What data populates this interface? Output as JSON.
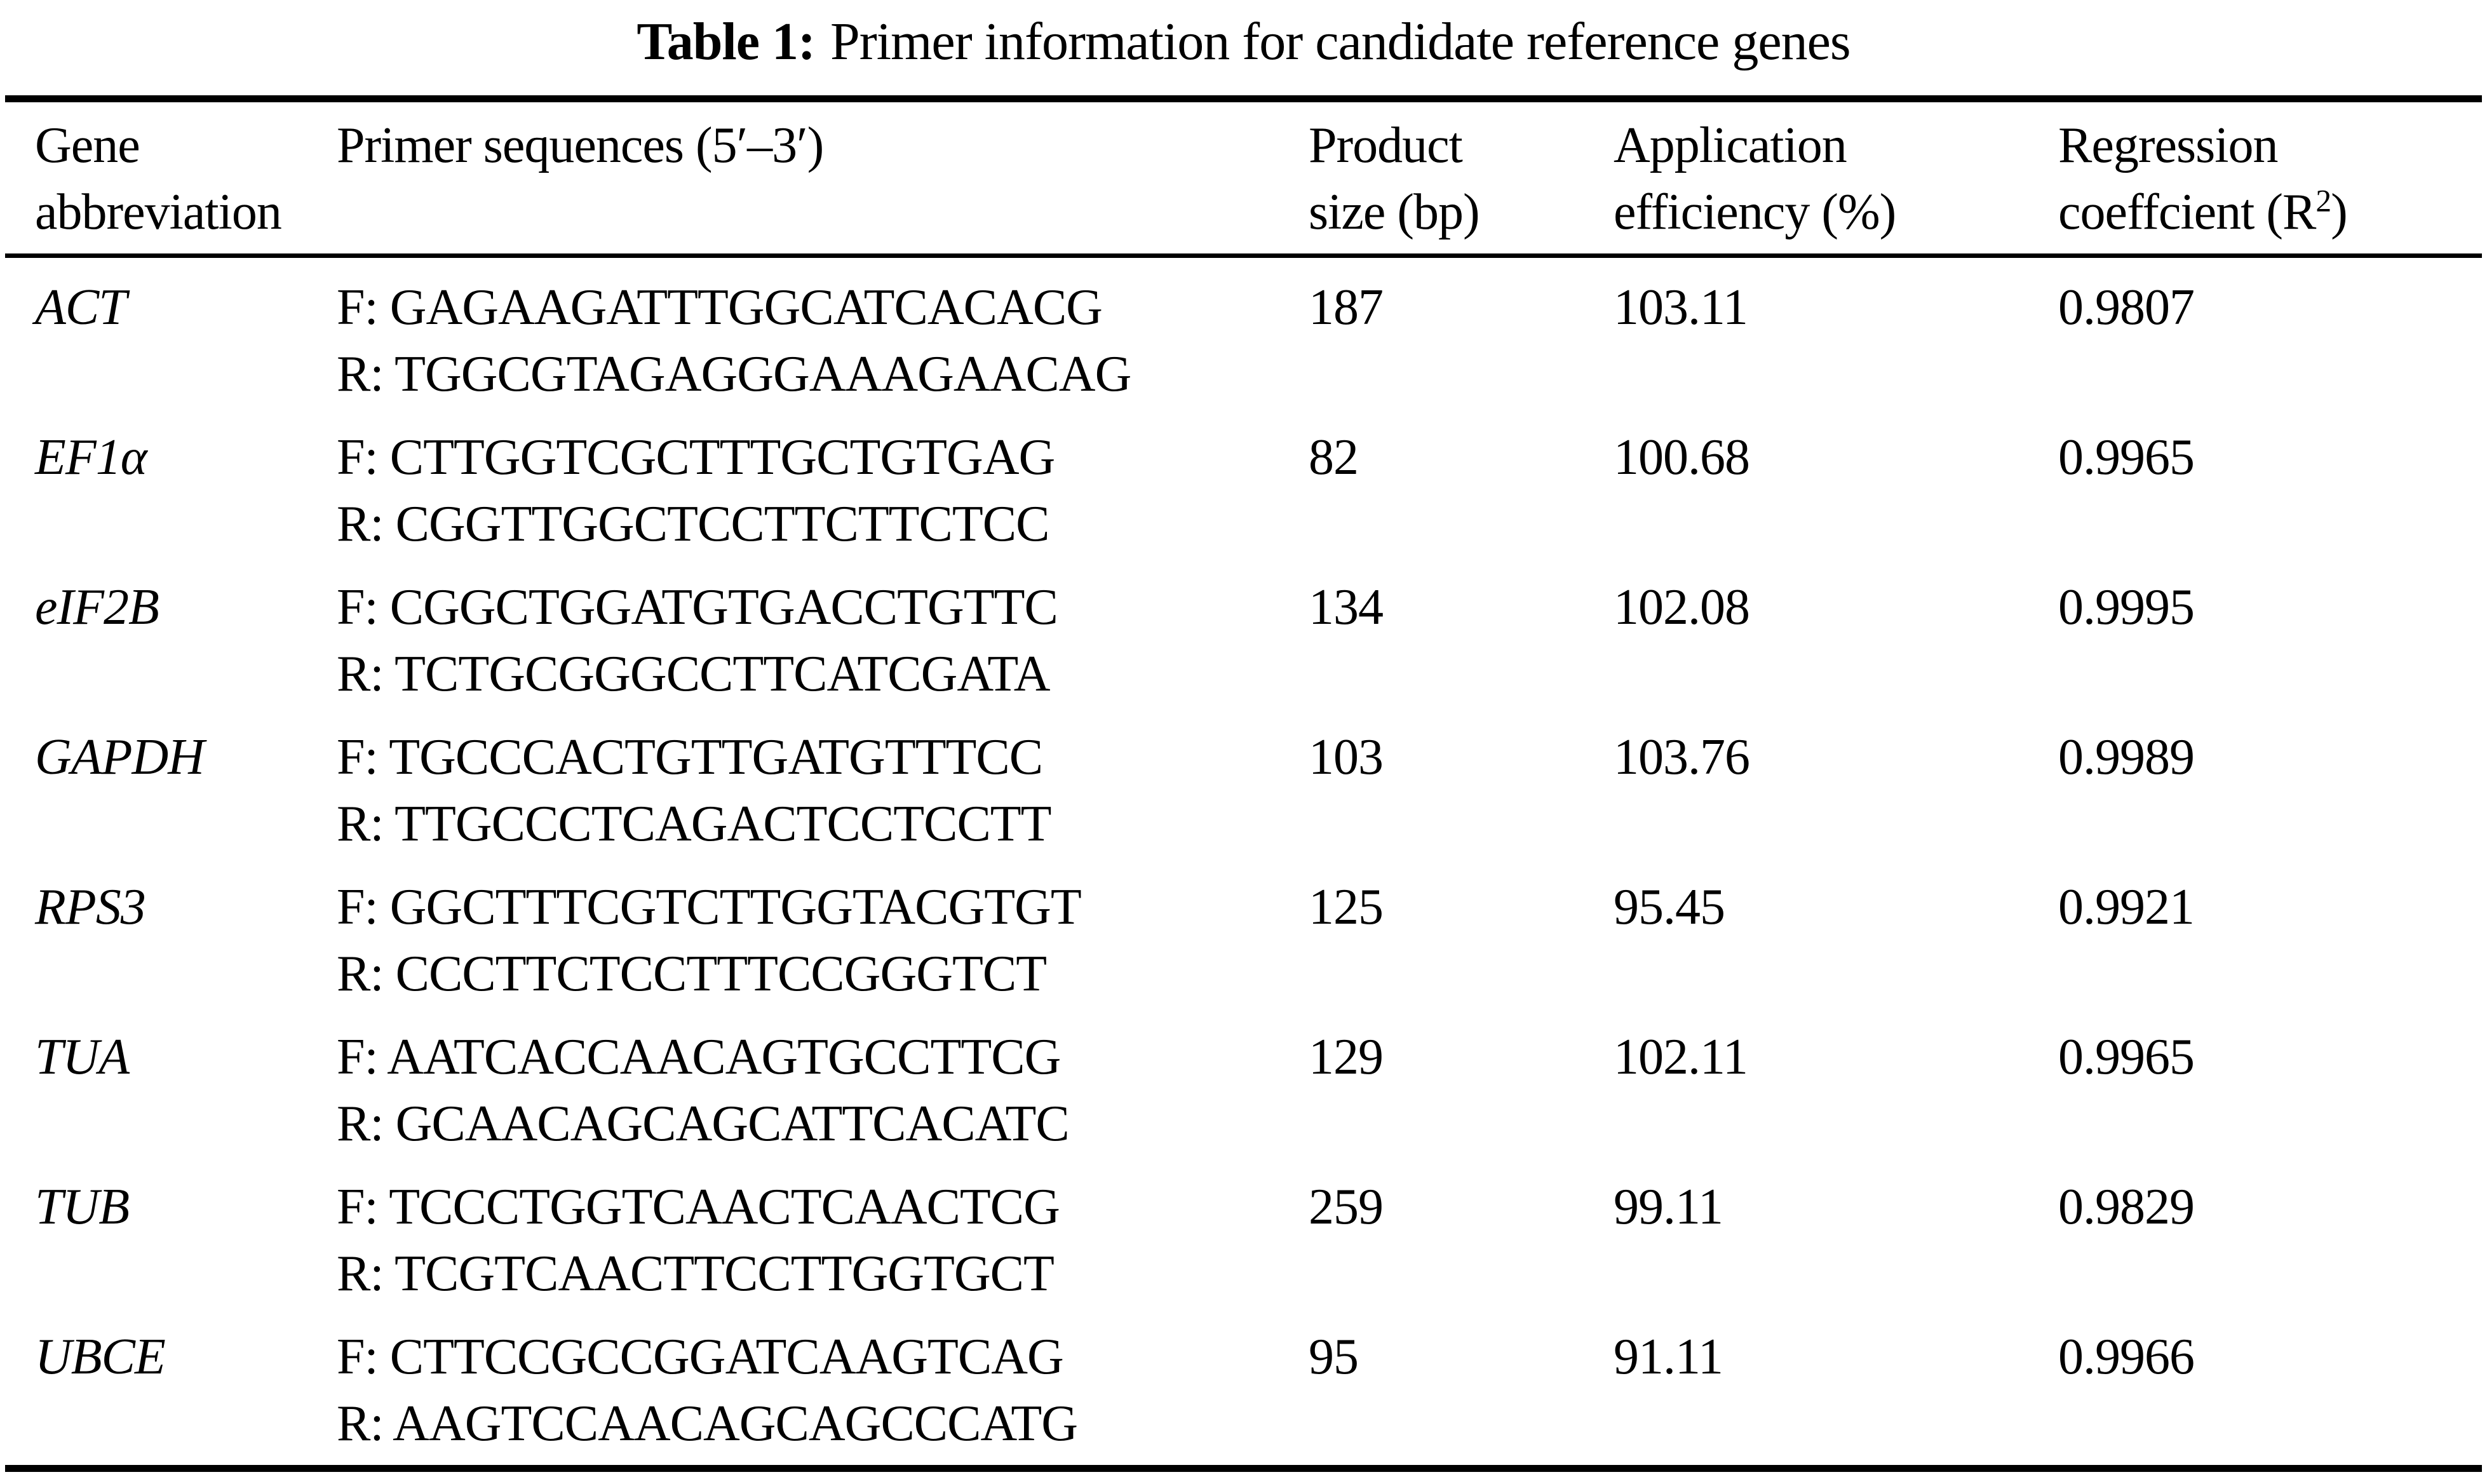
{
  "table": {
    "title_label": "Table 1:",
    "title_text": "Primer information for candidate reference genes",
    "columns": {
      "gene": {
        "line1": "Gene",
        "line2": "abbreviation"
      },
      "primers": {
        "line1": "Primer sequences (5′–3′)"
      },
      "product": {
        "line1": "Product",
        "line2": "size (bp)"
      },
      "efficiency": {
        "line1": "Application",
        "line2": "efficiency (%)"
      },
      "regression": {
        "line1": "Regression",
        "line2_prefix": "coeffcient (R",
        "line2_sup": "2",
        "line2_suffix": ")"
      }
    },
    "rows": [
      {
        "gene": "ACT",
        "forward": "F: GAGAAGATTTGGCATCACACG",
        "reverse": "R: TGGCGTAGAGGGAAAGAACAG",
        "product_size": "187",
        "efficiency": "103.11",
        "r2": "0.9807"
      },
      {
        "gene": "EF1α",
        "forward": "F: CTTGGTCGCTTTGCTGTGAG",
        "reverse": "R: CGGTTGGCTCCTTCTTCTCC",
        "product_size": "82",
        "efficiency": "100.68",
        "r2": "0.9965"
      },
      {
        "gene": "eIF2B",
        "forward": "F: CGGCTGGATGTGACCTGTTC",
        "reverse": "R: TCTGCGGGCCTTCATCGATA",
        "product_size": "134",
        "efficiency": "102.08",
        "r2": "0.9995"
      },
      {
        "gene": "GAPDH",
        "forward": "F: TGCCCACTGTTGATGTTTCC",
        "reverse": "R: TTGCCCTCAGACTCCTCCTT",
        "product_size": "103",
        "efficiency": "103.76",
        "r2": "0.9989"
      },
      {
        "gene": "RPS3",
        "forward": "F: GGCTTTCGTCTTGGTACGTGT",
        "reverse": "R: CCCTTCTCCTTTCCGGGTCT",
        "product_size": "125",
        "efficiency": "95.45",
        "r2": "0.9921"
      },
      {
        "gene": "TUA",
        "forward": "F: AATCACCAACAGTGCCTTCG",
        "reverse": "R: GCAACAGCAGCATTCACATC",
        "product_size": "129",
        "efficiency": "102.11",
        "r2": "0.9965"
      },
      {
        "gene": "TUB",
        "forward": "F: TCCCTGGTCAACTCAACTCG",
        "reverse": "R: TCGTCAACTTCCTTGGTGCT",
        "product_size": "259",
        "efficiency": "99.11",
        "r2": "0.9829"
      },
      {
        "gene": "UBCE",
        "forward": "F: CTTCCGCCGGATCAAGTCAG",
        "reverse": "R: AAGTCCAACAGCAGCCCATG",
        "product_size": "95",
        "efficiency": "91.11",
        "r2": "0.9966"
      }
    ]
  },
  "colors": {
    "text": "#000000",
    "background": "#ffffff",
    "rule": "#000000"
  }
}
